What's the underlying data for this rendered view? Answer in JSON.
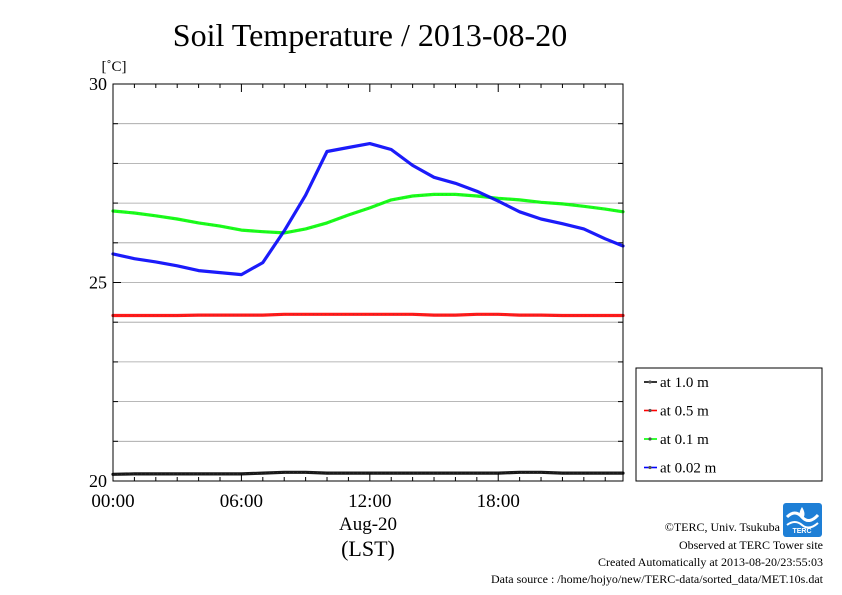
{
  "chart_data": {
    "type": "line",
    "title": "Soil Temperature / 2013-08-20",
    "ylabel": "[˚C]",
    "xlabel": "(LST)",
    "date_label": "Aug-20",
    "ylim": [
      20,
      30
    ],
    "y_ticks": [
      20,
      25,
      30
    ],
    "y_minor_step": 1,
    "x_ticks": [
      "00:00",
      "06:00",
      "12:00",
      "18:00"
    ],
    "x_tick_hours": [
      0,
      6,
      12,
      18
    ],
    "xlim_hours": [
      0,
      23.83
    ],
    "grid": true,
    "legend_position": "right",
    "x_hours": [
      0,
      1,
      2,
      3,
      4,
      5,
      6,
      7,
      8,
      9,
      10,
      11,
      12,
      13,
      14,
      15,
      16,
      17,
      18,
      19,
      20,
      21,
      22,
      23,
      23.83
    ],
    "series": [
      {
        "name": "at 1.0 m",
        "color": "#000000",
        "values": [
          20.17,
          20.18,
          20.18,
          20.18,
          20.18,
          20.18,
          20.18,
          20.2,
          20.22,
          20.22,
          20.2,
          20.2,
          20.2,
          20.2,
          20.2,
          20.2,
          20.2,
          20.2,
          20.2,
          20.22,
          20.22,
          20.2,
          20.2,
          20.2,
          20.2
        ]
      },
      {
        "name": "at 0.5 m",
        "color": "#ff0000",
        "values": [
          24.17,
          24.17,
          24.17,
          24.17,
          24.18,
          24.18,
          24.18,
          24.18,
          24.2,
          24.2,
          24.2,
          24.2,
          24.2,
          24.2,
          24.2,
          24.18,
          24.18,
          24.2,
          24.2,
          24.18,
          24.18,
          24.17,
          24.17,
          24.17,
          24.17
        ]
      },
      {
        "name": "at 0.1 m",
        "color": "#00ff00",
        "values": [
          26.8,
          26.75,
          26.68,
          26.6,
          26.5,
          26.42,
          26.32,
          26.28,
          26.25,
          26.35,
          26.5,
          26.7,
          26.88,
          27.08,
          27.18,
          27.22,
          27.22,
          27.18,
          27.12,
          27.08,
          27.02,
          26.98,
          26.92,
          26.85,
          26.78
        ]
      },
      {
        "name": "at 0.02 m",
        "color": "#0000ff",
        "values": [
          25.72,
          25.6,
          25.52,
          25.42,
          25.3,
          25.25,
          25.2,
          25.5,
          26.3,
          27.2,
          28.3,
          28.4,
          28.5,
          28.35,
          27.95,
          27.65,
          27.5,
          27.3,
          27.05,
          26.78,
          26.6,
          26.48,
          26.35,
          26.1,
          25.92
        ]
      }
    ]
  },
  "credits": {
    "line1": "©TERC, Univ. Tsukuba",
    "line2": "Observed at TERC Tower site",
    "line3": "Created Automatically at 2013-08-20/23:55:03",
    "line4": "Data source : /home/hojyo/new/TERC-data/sorted_data/MET.10s.dat"
  },
  "logo": {
    "text": "TERC",
    "icon": "terc-logo-icon",
    "color": "#1e7fd6"
  }
}
